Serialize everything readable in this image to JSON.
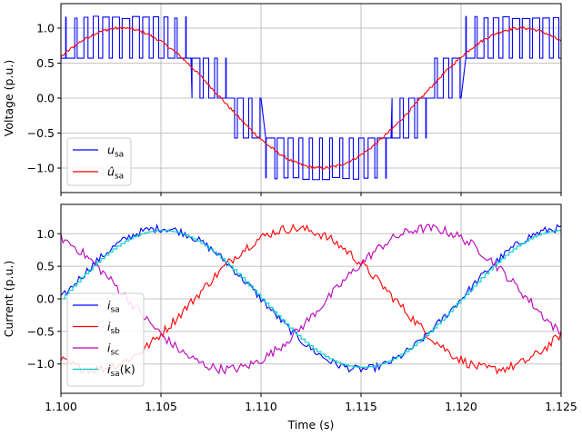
{
  "chart_data": [
    {
      "type": "line",
      "title": "",
      "xlabel": "",
      "ylabel": "Voltage (p.u.)",
      "xlim": [
        1.1,
        1.125
      ],
      "ylim": [
        -1.35,
        1.35
      ],
      "yticks": [
        -1.0,
        -0.5,
        0.0,
        0.5,
        1.0
      ],
      "ytick_labels": [
        "−1.0",
        "−0.5",
        "0.0",
        "0.5",
        "1.0"
      ],
      "xticks": [
        1.1,
        1.105,
        1.11,
        1.115,
        1.12,
        1.125
      ],
      "grid": true,
      "legend_position": "lower-left",
      "fundamental_frequency_hz": 50,
      "phase_deg": 36,
      "series": [
        {
          "name": "u_sa",
          "legend_main": "u",
          "legend_sub": "sa",
          "color": "#0000ff",
          "kind": "pwm-phase-voltage",
          "levels": [
            -1.2,
            -1.13,
            -0.57,
            0.0,
            0.57,
            1.13,
            1.2
          ],
          "carrier_khz": 2.0
        },
        {
          "name": "û_sa",
          "legend_main": "û",
          "legend_sub": "sa",
          "color": "#ff0000",
          "kind": "sine-ripple",
          "amplitude": 1.0,
          "ripple": 0.02
        }
      ]
    },
    {
      "type": "line",
      "title": "",
      "xlabel": "Time (s)",
      "ylabel": "Current (p.u.)",
      "xlim": [
        1.1,
        1.125
      ],
      "ylim": [
        -1.45,
        1.45
      ],
      "yticks": [
        -1.0,
        -0.5,
        0.0,
        0.5,
        1.0
      ],
      "ytick_labels": [
        "−1.0",
        "−0.5",
        "0.0",
        "0.5",
        "1.0"
      ],
      "xticks": [
        1.1,
        1.105,
        1.11,
        1.115,
        1.12,
        1.125
      ],
      "xtick_labels": [
        "1.100",
        "1.105",
        "1.110",
        "1.115",
        "1.120",
        "1.125"
      ],
      "grid": true,
      "legend_position": "lower-left",
      "fundamental_frequency_hz": 50,
      "series": [
        {
          "name": "i_sa",
          "legend_main": "i",
          "legend_sub": "sa",
          "color": "#0000ff",
          "phase_deg": 0,
          "amplitude": 1.08,
          "ripple": 0.05
        },
        {
          "name": "i_sb",
          "legend_main": "i",
          "legend_sub": "sb",
          "color": "#ff0000",
          "phase_deg": -120,
          "amplitude": 1.08,
          "ripple": 0.06
        },
        {
          "name": "i_sc",
          "legend_main": "i",
          "legend_sub": "sc",
          "color": "#bb00bb",
          "phase_deg": 120,
          "amplitude": 1.08,
          "ripple": 0.06
        },
        {
          "name": "i_sa(k)",
          "legend_main": "i",
          "legend_sub": "sa",
          "legend_suffix": "(k)",
          "color": "#00cccc",
          "phase_deg": 0,
          "amplitude": 1.05,
          "step": true
        }
      ]
    }
  ]
}
